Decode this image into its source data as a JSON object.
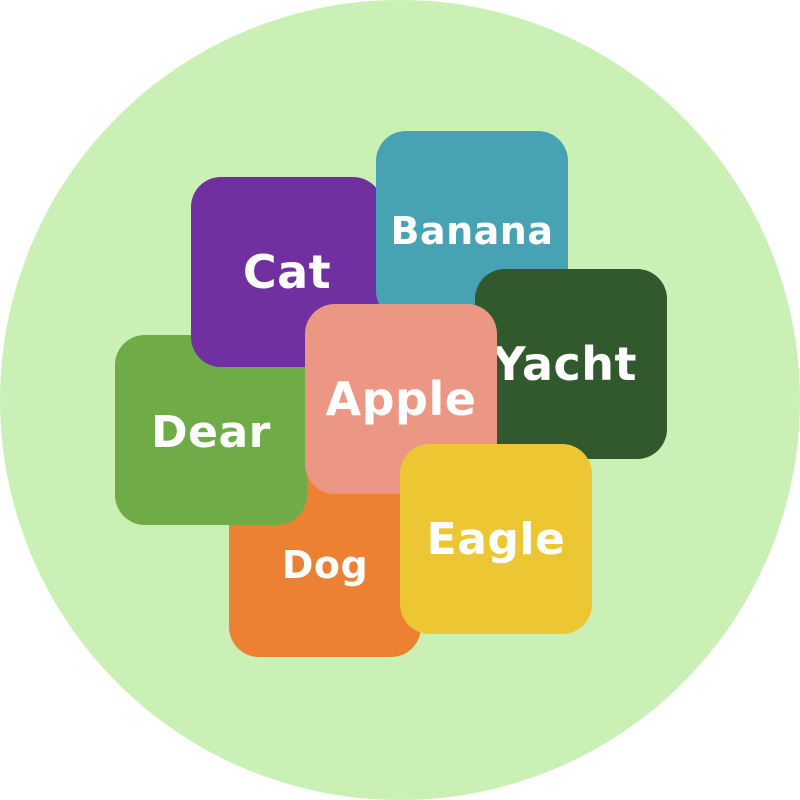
{
  "background": {
    "color": "#caf0b6"
  },
  "tiles": [
    {
      "id": "tile-dog",
      "label": "Dog",
      "color": "#ec8033"
    },
    {
      "id": "tile-dear",
      "label": "Dear",
      "color": "#6fab46"
    },
    {
      "id": "tile-cat",
      "label": "Cat",
      "color": "#7130a0"
    },
    {
      "id": "tile-banana",
      "label": "Banana",
      "color": "#47a2b3"
    },
    {
      "id": "tile-yacht",
      "label": "Yacht",
      "color": "#32582e"
    },
    {
      "id": "tile-apple",
      "label": "Apple",
      "color": "#ec9684"
    },
    {
      "id": "tile-eagle",
      "label": "Eagle",
      "color": "#edc733"
    }
  ]
}
